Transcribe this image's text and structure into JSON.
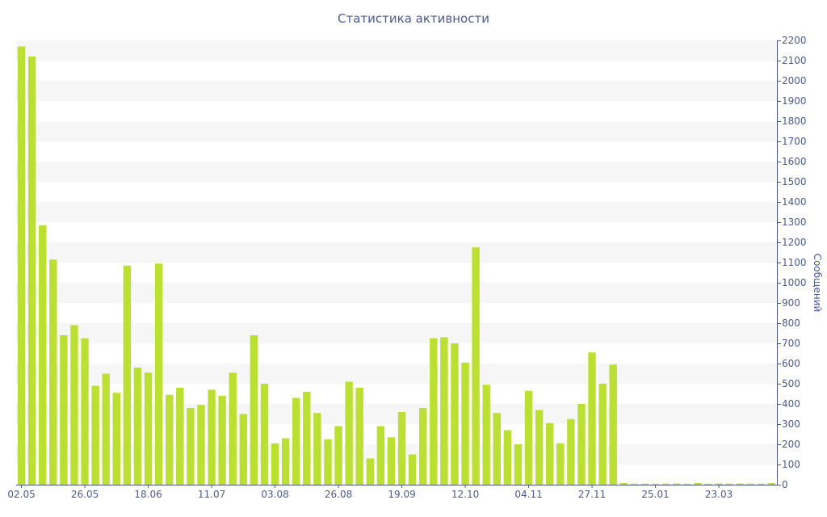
{
  "colors": {
    "bar": "#bbe033",
    "band": "#f6f6f6",
    "axis": "#4a5a93",
    "text": "#4a5a93"
  },
  "chart_data": {
    "type": "bar",
    "title": "Статистика активности",
    "ylabel": "Сообщений",
    "xlabel": "",
    "ylim": [
      0,
      2200
    ],
    "y_ticks": [
      0,
      100,
      200,
      300,
      400,
      500,
      600,
      700,
      800,
      900,
      1000,
      1100,
      1200,
      1300,
      1400,
      1500,
      1600,
      1700,
      1800,
      1900,
      2000,
      2100,
      2200
    ],
    "y_axis_side": "right",
    "grid": "alternating horizontal bands",
    "x_tick_labels": [
      {
        "index": 0,
        "label": "02.05"
      },
      {
        "index": 6,
        "label": "26.05"
      },
      {
        "index": 12,
        "label": "18.06"
      },
      {
        "index": 18,
        "label": "11.07"
      },
      {
        "index": 24,
        "label": "03.08"
      },
      {
        "index": 30,
        "label": "26.08"
      },
      {
        "index": 36,
        "label": "19.09"
      },
      {
        "index": 42,
        "label": "12.10"
      },
      {
        "index": 48,
        "label": "04.11"
      },
      {
        "index": 54,
        "label": "27.11"
      },
      {
        "index": 60,
        "label": "25.01"
      },
      {
        "index": 66,
        "label": "23.03"
      }
    ],
    "values": [
      2170,
      2120,
      1285,
      1115,
      740,
      790,
      725,
      490,
      550,
      455,
      1085,
      580,
      555,
      1095,
      445,
      480,
      380,
      395,
      470,
      440,
      555,
      350,
      740,
      500,
      205,
      230,
      430,
      460,
      355,
      225,
      290,
      510,
      480,
      130,
      290,
      235,
      360,
      150,
      380,
      725,
      730,
      700,
      605,
      1175,
      495,
      355,
      270,
      200,
      465,
      370,
      305,
      205,
      325,
      400,
      655,
      500,
      595,
      8,
      5,
      5,
      5,
      5,
      6,
      5,
      8,
      5,
      6,
      5,
      6,
      5,
      5,
      8
    ]
  }
}
